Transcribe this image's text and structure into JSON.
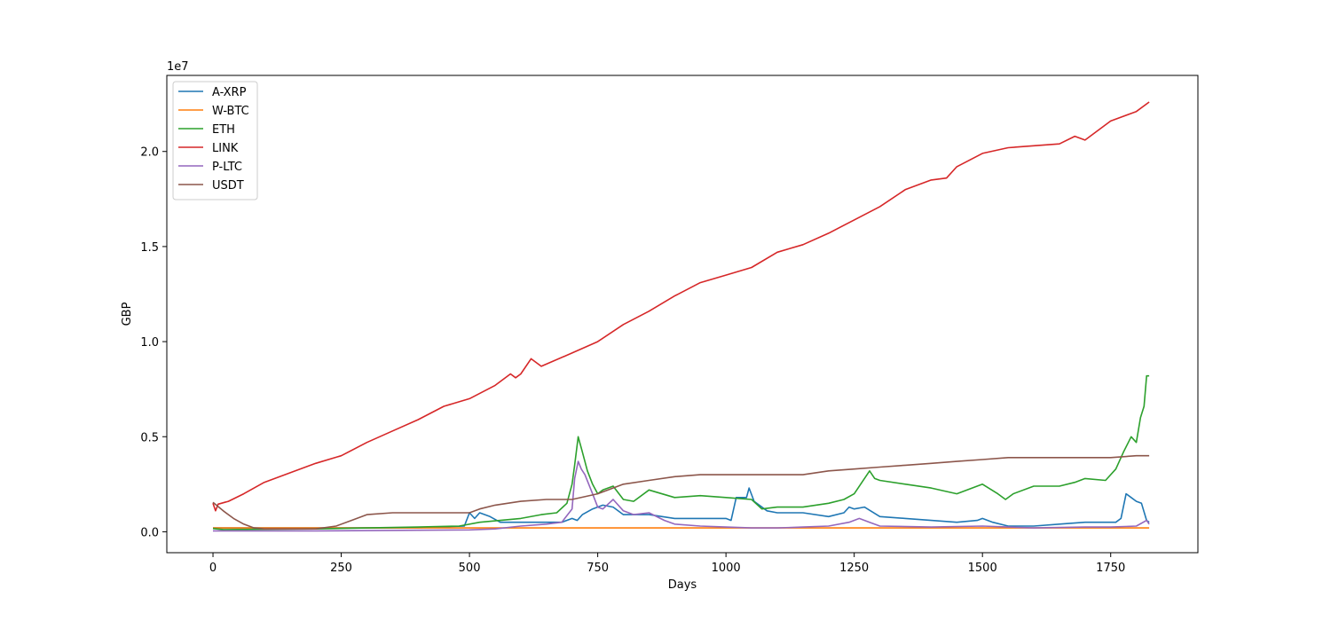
{
  "chart_data": {
    "type": "line",
    "title": "",
    "xlabel": "Days",
    "ylabel": "GBP",
    "offset_text": "1e7",
    "xlim": [
      -90,
      1920
    ],
    "ylim": [
      -0.11,
      2.4
    ],
    "y_scale_factor": 10000000,
    "x_ticks": [
      0,
      250,
      500,
      750,
      1000,
      1250,
      1500,
      1750
    ],
    "x_tick_labels": [
      "0",
      "250",
      "500",
      "750",
      "1000",
      "1250",
      "1500",
      "1750"
    ],
    "y_ticks": [
      0.0,
      0.5,
      1.0,
      1.5,
      2.0
    ],
    "y_tick_labels": [
      "0.0",
      "0.5",
      "1.0",
      "1.5",
      "2.0"
    ],
    "grid": false,
    "legend_position": "top-left",
    "series": [
      {
        "name": "A-XRP",
        "color": "#1f77b4",
        "points": [
          [
            0,
            0.02
          ],
          [
            100,
            0.02
          ],
          [
            200,
            0.02
          ],
          [
            300,
            0.02
          ],
          [
            400,
            0.02
          ],
          [
            490,
            0.03
          ],
          [
            500,
            0.1
          ],
          [
            510,
            0.07
          ],
          [
            520,
            0.1
          ],
          [
            540,
            0.08
          ],
          [
            560,
            0.05
          ],
          [
            600,
            0.05
          ],
          [
            640,
            0.05
          ],
          [
            680,
            0.05
          ],
          [
            700,
            0.07
          ],
          [
            710,
            0.06
          ],
          [
            720,
            0.09
          ],
          [
            740,
            0.12
          ],
          [
            760,
            0.14
          ],
          [
            780,
            0.13
          ],
          [
            800,
            0.09
          ],
          [
            850,
            0.09
          ],
          [
            900,
            0.07
          ],
          [
            950,
            0.07
          ],
          [
            1000,
            0.07
          ],
          [
            1010,
            0.06
          ],
          [
            1020,
            0.18
          ],
          [
            1040,
            0.18
          ],
          [
            1045,
            0.23
          ],
          [
            1055,
            0.16
          ],
          [
            1080,
            0.11
          ],
          [
            1100,
            0.1
          ],
          [
            1150,
            0.1
          ],
          [
            1200,
            0.08
          ],
          [
            1230,
            0.1
          ],
          [
            1240,
            0.13
          ],
          [
            1250,
            0.12
          ],
          [
            1270,
            0.13
          ],
          [
            1300,
            0.08
          ],
          [
            1350,
            0.07
          ],
          [
            1400,
            0.06
          ],
          [
            1450,
            0.05
          ],
          [
            1490,
            0.06
          ],
          [
            1500,
            0.07
          ],
          [
            1520,
            0.05
          ],
          [
            1550,
            0.03
          ],
          [
            1600,
            0.03
          ],
          [
            1650,
            0.04
          ],
          [
            1700,
            0.05
          ],
          [
            1760,
            0.05
          ],
          [
            1770,
            0.07
          ],
          [
            1780,
            0.2
          ],
          [
            1790,
            0.18
          ],
          [
            1800,
            0.16
          ],
          [
            1810,
            0.15
          ],
          [
            1820,
            0.06
          ],
          [
            1825,
            0.05
          ]
        ]
      },
      {
        "name": "W-BTC",
        "color": "#ff7f0e",
        "points": [
          [
            0,
            0.02
          ],
          [
            300,
            0.02
          ],
          [
            600,
            0.02
          ],
          [
            900,
            0.02
          ],
          [
            1200,
            0.02
          ],
          [
            1500,
            0.02
          ],
          [
            1825,
            0.02
          ]
        ]
      },
      {
        "name": "ETH",
        "color": "#2ca02c",
        "points": [
          [
            0,
            0.017
          ],
          [
            20,
            0.012
          ],
          [
            100,
            0.013
          ],
          [
            200,
            0.015
          ],
          [
            300,
            0.02
          ],
          [
            400,
            0.025
          ],
          [
            480,
            0.03
          ],
          [
            520,
            0.05
          ],
          [
            560,
            0.06
          ],
          [
            600,
            0.07
          ],
          [
            640,
            0.09
          ],
          [
            670,
            0.1
          ],
          [
            690,
            0.15
          ],
          [
            700,
            0.25
          ],
          [
            705,
            0.35
          ],
          [
            712,
            0.5
          ],
          [
            720,
            0.42
          ],
          [
            730,
            0.32
          ],
          [
            740,
            0.25
          ],
          [
            750,
            0.2
          ],
          [
            760,
            0.22
          ],
          [
            780,
            0.24
          ],
          [
            800,
            0.17
          ],
          [
            820,
            0.16
          ],
          [
            850,
            0.22
          ],
          [
            900,
            0.18
          ],
          [
            950,
            0.19
          ],
          [
            1000,
            0.18
          ],
          [
            1050,
            0.17
          ],
          [
            1070,
            0.12
          ],
          [
            1100,
            0.13
          ],
          [
            1150,
            0.13
          ],
          [
            1200,
            0.15
          ],
          [
            1230,
            0.17
          ],
          [
            1250,
            0.2
          ],
          [
            1270,
            0.28
          ],
          [
            1280,
            0.32
          ],
          [
            1290,
            0.28
          ],
          [
            1300,
            0.27
          ],
          [
            1350,
            0.25
          ],
          [
            1400,
            0.23
          ],
          [
            1450,
            0.2
          ],
          [
            1500,
            0.25
          ],
          [
            1530,
            0.2
          ],
          [
            1545,
            0.17
          ],
          [
            1560,
            0.2
          ],
          [
            1600,
            0.24
          ],
          [
            1650,
            0.24
          ],
          [
            1680,
            0.26
          ],
          [
            1700,
            0.28
          ],
          [
            1740,
            0.27
          ],
          [
            1760,
            0.33
          ],
          [
            1775,
            0.42
          ],
          [
            1790,
            0.5
          ],
          [
            1800,
            0.47
          ],
          [
            1808,
            0.6
          ],
          [
            1815,
            0.66
          ],
          [
            1820,
            0.82
          ],
          [
            1825,
            0.82
          ]
        ]
      },
      {
        "name": "LINK",
        "color": "#d62728",
        "points": [
          [
            0,
            0.15
          ],
          [
            5,
            0.11
          ],
          [
            10,
            0.145
          ],
          [
            30,
            0.16
          ],
          [
            60,
            0.2
          ],
          [
            100,
            0.26
          ],
          [
            150,
            0.31
          ],
          [
            200,
            0.36
          ],
          [
            250,
            0.4
          ],
          [
            300,
            0.47
          ],
          [
            350,
            0.53
          ],
          [
            400,
            0.59
          ],
          [
            450,
            0.66
          ],
          [
            500,
            0.7
          ],
          [
            550,
            0.77
          ],
          [
            580,
            0.83
          ],
          [
            590,
            0.81
          ],
          [
            600,
            0.83
          ],
          [
            620,
            0.91
          ],
          [
            640,
            0.87
          ],
          [
            700,
            0.94
          ],
          [
            750,
            1.0
          ],
          [
            800,
            1.09
          ],
          [
            850,
            1.16
          ],
          [
            900,
            1.24
          ],
          [
            950,
            1.31
          ],
          [
            1000,
            1.35
          ],
          [
            1050,
            1.39
          ],
          [
            1100,
            1.47
          ],
          [
            1150,
            1.51
          ],
          [
            1200,
            1.57
          ],
          [
            1250,
            1.64
          ],
          [
            1300,
            1.71
          ],
          [
            1350,
            1.8
          ],
          [
            1400,
            1.85
          ],
          [
            1430,
            1.86
          ],
          [
            1450,
            1.92
          ],
          [
            1500,
            1.99
          ],
          [
            1550,
            2.02
          ],
          [
            1600,
            2.03
          ],
          [
            1650,
            2.04
          ],
          [
            1680,
            2.08
          ],
          [
            1700,
            2.06
          ],
          [
            1750,
            2.16
          ],
          [
            1800,
            2.21
          ],
          [
            1825,
            2.26
          ]
        ]
      },
      {
        "name": "P-LTC",
        "color": "#9467bd",
        "points": [
          [
            0,
            0.005
          ],
          [
            100,
            0.005
          ],
          [
            200,
            0.005
          ],
          [
            300,
            0.006
          ],
          [
            400,
            0.008
          ],
          [
            500,
            0.01
          ],
          [
            550,
            0.015
          ],
          [
            600,
            0.03
          ],
          [
            650,
            0.04
          ],
          [
            680,
            0.05
          ],
          [
            700,
            0.12
          ],
          [
            705,
            0.28
          ],
          [
            712,
            0.37
          ],
          [
            718,
            0.33
          ],
          [
            725,
            0.3
          ],
          [
            740,
            0.2
          ],
          [
            750,
            0.13
          ],
          [
            760,
            0.12
          ],
          [
            780,
            0.17
          ],
          [
            800,
            0.11
          ],
          [
            820,
            0.09
          ],
          [
            850,
            0.1
          ],
          [
            880,
            0.06
          ],
          [
            900,
            0.04
          ],
          [
            950,
            0.03
          ],
          [
            1000,
            0.025
          ],
          [
            1050,
            0.02
          ],
          [
            1100,
            0.02
          ],
          [
            1150,
            0.025
          ],
          [
            1200,
            0.03
          ],
          [
            1240,
            0.05
          ],
          [
            1260,
            0.07
          ],
          [
            1280,
            0.05
          ],
          [
            1300,
            0.03
          ],
          [
            1400,
            0.025
          ],
          [
            1500,
            0.03
          ],
          [
            1600,
            0.02
          ],
          [
            1700,
            0.025
          ],
          [
            1750,
            0.025
          ],
          [
            1800,
            0.03
          ],
          [
            1820,
            0.06
          ],
          [
            1825,
            0.04
          ]
        ]
      },
      {
        "name": "USDT",
        "color": "#8c564b",
        "points": [
          [
            0,
            0.155
          ],
          [
            20,
            0.11
          ],
          [
            40,
            0.07
          ],
          [
            60,
            0.04
          ],
          [
            80,
            0.02
          ],
          [
            100,
            0.015
          ],
          [
            150,
            0.015
          ],
          [
            200,
            0.015
          ],
          [
            240,
            0.03
          ],
          [
            270,
            0.06
          ],
          [
            300,
            0.09
          ],
          [
            350,
            0.1
          ],
          [
            400,
            0.1
          ],
          [
            450,
            0.1
          ],
          [
            500,
            0.1
          ],
          [
            520,
            0.12
          ],
          [
            550,
            0.14
          ],
          [
            600,
            0.16
          ],
          [
            650,
            0.17
          ],
          [
            700,
            0.17
          ],
          [
            750,
            0.2
          ],
          [
            800,
            0.25
          ],
          [
            850,
            0.27
          ],
          [
            900,
            0.29
          ],
          [
            950,
            0.3
          ],
          [
            1000,
            0.3
          ],
          [
            1050,
            0.3
          ],
          [
            1100,
            0.3
          ],
          [
            1150,
            0.3
          ],
          [
            1200,
            0.32
          ],
          [
            1250,
            0.33
          ],
          [
            1300,
            0.34
          ],
          [
            1350,
            0.35
          ],
          [
            1400,
            0.36
          ],
          [
            1450,
            0.37
          ],
          [
            1500,
            0.38
          ],
          [
            1550,
            0.39
          ],
          [
            1600,
            0.39
          ],
          [
            1650,
            0.39
          ],
          [
            1700,
            0.39
          ],
          [
            1750,
            0.39
          ],
          [
            1800,
            0.4
          ],
          [
            1825,
            0.4
          ]
        ]
      }
    ]
  }
}
